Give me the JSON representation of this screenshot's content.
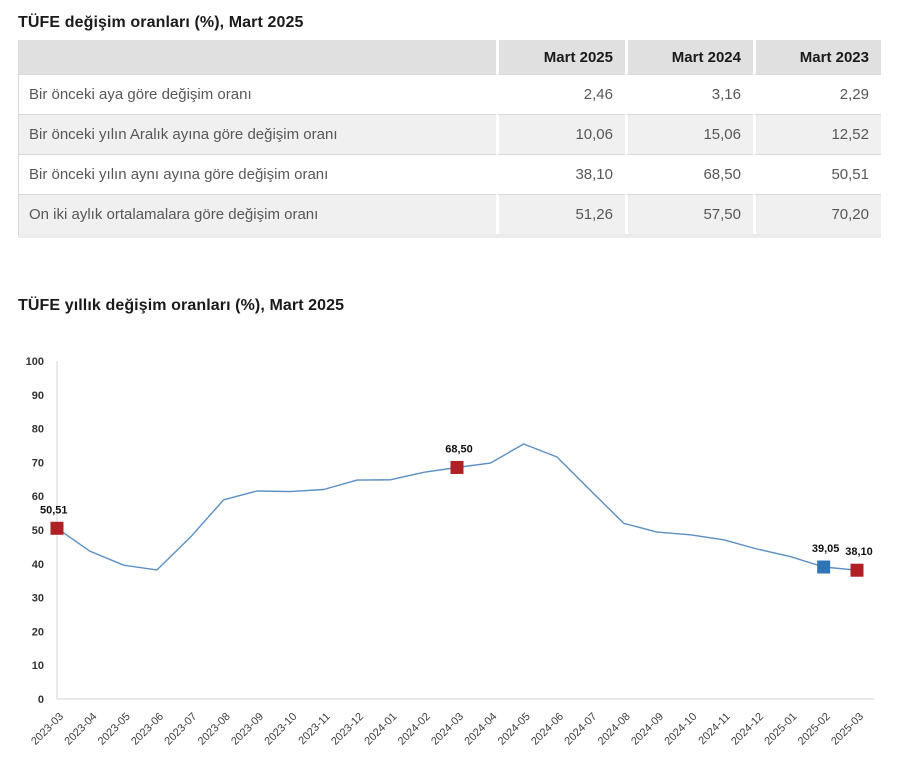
{
  "summary_table": {
    "title": "TÜFE değişim oranları (%), Mart 2025",
    "columns": [
      "Mart 2025",
      "Mart 2024",
      "Mart 2023"
    ],
    "rows": [
      {
        "label": "Bir önceki aya göre değişim oranı",
        "values": [
          "2,46",
          "3,16",
          "2,29"
        ]
      },
      {
        "label": "Bir önceki yılın Aralık ayına göre değişim oranı",
        "values": [
          "10,06",
          "15,06",
          "12,52"
        ]
      },
      {
        "label": "Bir önceki yılın aynı ayına göre değişim oranı",
        "values": [
          "38,10",
          "68,50",
          "50,51"
        ]
      },
      {
        "label": "On iki aylık ortalamalara göre değişim oranı",
        "values": [
          "51,26",
          "57,50",
          "70,20"
        ]
      }
    ]
  },
  "chart": {
    "title": "TÜFE yıllık değişim oranları (%), Mart 2025"
  },
  "chart_data": {
    "type": "line",
    "title": "TÜFE yıllık değişim oranları (%), Mart 2025",
    "categories": [
      "2023-03",
      "2023-04",
      "2023-05",
      "2023-06",
      "2023-07",
      "2023-08",
      "2023-09",
      "2023-10",
      "2023-11",
      "2023-12",
      "2024-01",
      "2024-02",
      "2024-03",
      "2024-04",
      "2024-05",
      "2024-06",
      "2024-07",
      "2024-08",
      "2024-09",
      "2024-10",
      "2024-11",
      "2024-12",
      "2025-01",
      "2025-02",
      "2025-03"
    ],
    "values": [
      50.51,
      43.68,
      39.59,
      38.21,
      47.83,
      58.94,
      61.53,
      61.36,
      61.98,
      64.77,
      64.86,
      67.07,
      68.5,
      69.8,
      75.45,
      71.6,
      61.78,
      51.97,
      49.38,
      48.58,
      47.09,
      44.38,
      42.12,
      39.05,
      38.1
    ],
    "xlabel": "",
    "ylabel": "",
    "ylim": [
      0,
      100
    ],
    "ytick_step": 10,
    "grid": false,
    "legend": "none",
    "line_color": "#5b8fc4",
    "axis_color": "#d6d6d6",
    "markers": [
      {
        "index": 0,
        "label": "50,51",
        "color": "#b02126"
      },
      {
        "index": 12,
        "label": "68,50",
        "color": "#b02126"
      },
      {
        "index": 23,
        "label": "39,05",
        "color": "#2e75b6"
      },
      {
        "index": 24,
        "label": "38,10",
        "color": "#b02126"
      }
    ]
  }
}
